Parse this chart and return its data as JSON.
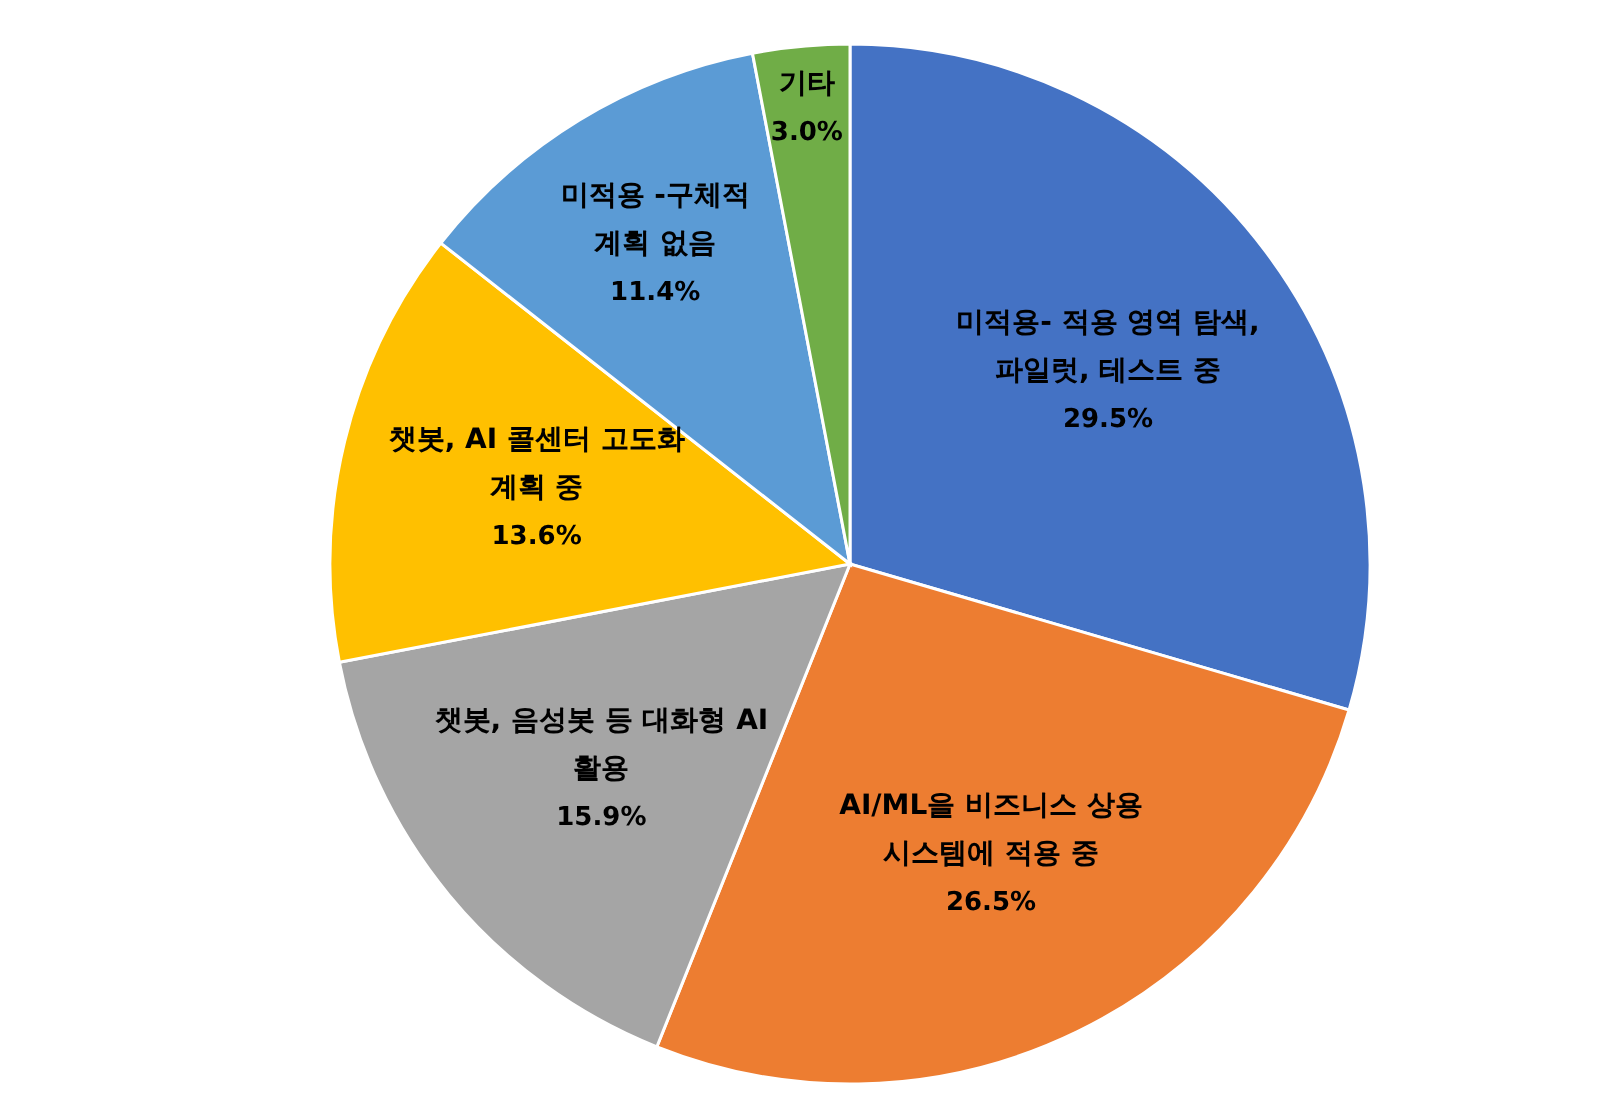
{
  "chart_data": {
    "type": "pie",
    "categories": [
      "미적용- 적용 영역 탐색, 파일럿, 테스트 중",
      "AI/ML을 비즈니스 상용 시스템에 적용 중",
      "챗봇, 음성봇 등 대화형 AI 활용",
      "챗봇, AI 콜센터 고도화 계획 중",
      "미적용 -구체적 계획 없음",
      "기타"
    ],
    "values": [
      29.5,
      26.5,
      15.9,
      13.6,
      11.4,
      3.0
    ],
    "colors": [
      "#4472c4",
      "#ed7d31",
      "#a5a5a5",
      "#ffc000",
      "#5b9bd5",
      "#70ad47"
    ],
    "value_labels": [
      "29.5%",
      "26.5%",
      "15.9%",
      "13.6%",
      "11.4%",
      "3.0%"
    ],
    "legend": false
  }
}
